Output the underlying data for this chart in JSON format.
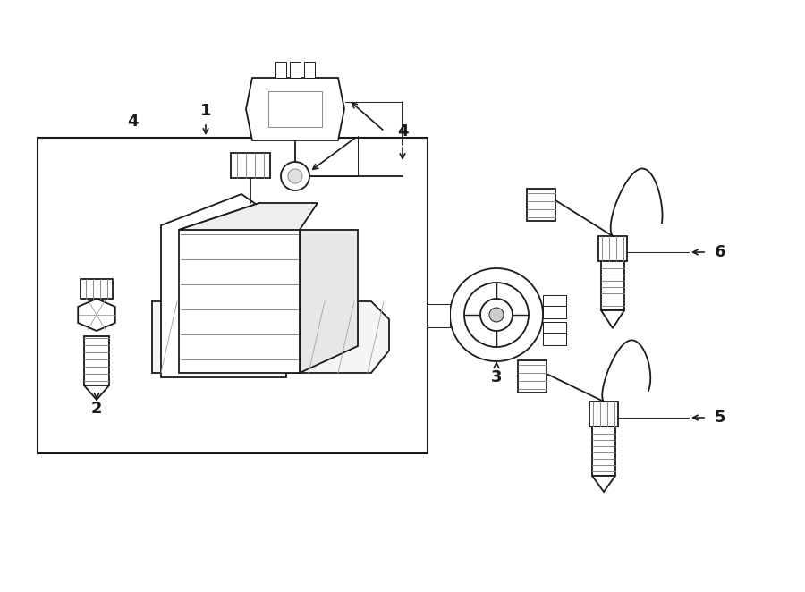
{
  "background_color": "#ffffff",
  "line_color": "#1a1a1a",
  "fig_width": 9.0,
  "fig_height": 6.62,
  "dpi": 100,
  "label_fontsize": 13,
  "label_fontweight": "bold"
}
